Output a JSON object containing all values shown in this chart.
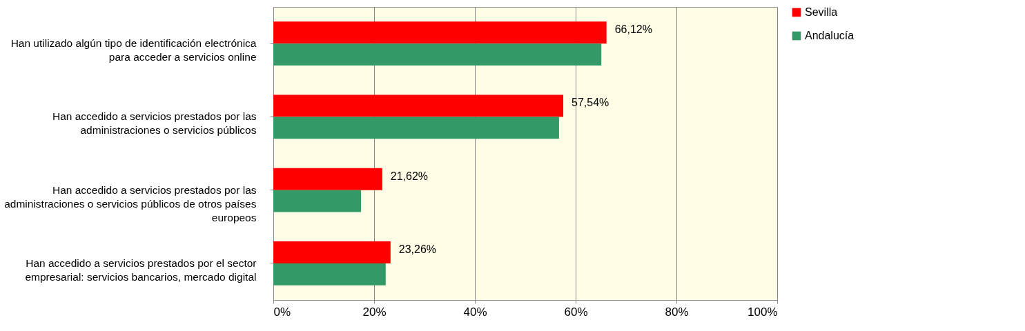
{
  "chart_data": {
    "type": "bar",
    "orientation": "horizontal",
    "categories": [
      "Han utilizado algún tipo de identificación electrónica para acceder a servicios online",
      "Han accedido a servicios prestados por las administraciones o servicios públicos",
      "Han accedido a servicios prestados por las administraciones o servicios públicos de otros países europeos",
      "Han accedido a servicios prestados por el sector empresarial: servicios bancarios, mercado digital"
    ],
    "series": [
      {
        "name": "Sevilla",
        "color": "#ff0000",
        "values": [
          66.12,
          57.54,
          21.62,
          23.26
        ],
        "value_labels": [
          "66,12%",
          "57,54%",
          "21,62%",
          "23,26%"
        ]
      },
      {
        "name": "Andalucía",
        "color": "#339966",
        "values": [
          65.1,
          56.7,
          17.4,
          22.3
        ]
      }
    ],
    "xlim": [
      0,
      100
    ],
    "xticks": [
      {
        "value": 0,
        "label": "0%"
      },
      {
        "value": 20,
        "label": "20%"
      },
      {
        "value": 40,
        "label": "40%"
      },
      {
        "value": 60,
        "label": "60%"
      },
      {
        "value": 80,
        "label": "80%"
      },
      {
        "value": 100,
        "label": "100%"
      }
    ],
    "grid": "x",
    "legend": "right"
  }
}
